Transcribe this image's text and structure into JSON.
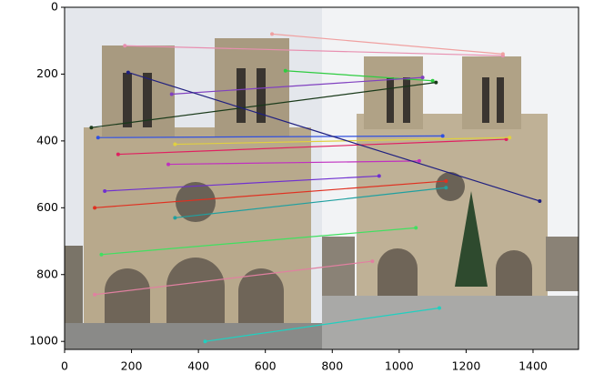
{
  "chart_data": {
    "type": "image-matches",
    "xlim": [
      0,
      1536
    ],
    "ylim": [
      1024,
      0
    ],
    "xticks": [
      0,
      200,
      400,
      600,
      800,
      1000,
      1200,
      1400
    ],
    "yticks": [
      0,
      200,
      400,
      600,
      800,
      1000
    ],
    "matches": [
      {
        "x1": 180,
        "y1": 115,
        "x2": 1310,
        "y2": 145,
        "color": "#e88fb0"
      },
      {
        "x1": 620,
        "y1": 80,
        "x2": 1310,
        "y2": 140,
        "color": "#f0a0a0"
      },
      {
        "x1": 660,
        "y1": 190,
        "x2": 1100,
        "y2": 220,
        "color": "#2ecc40"
      },
      {
        "x1": 320,
        "y1": 260,
        "x2": 1070,
        "y2": 210,
        "color": "#8040c0"
      },
      {
        "x1": 80,
        "y1": 360,
        "x2": 1110,
        "y2": 225,
        "color": "#1a3a1a"
      },
      {
        "x1": 100,
        "y1": 390,
        "x2": 1130,
        "y2": 385,
        "color": "#3050e0"
      },
      {
        "x1": 160,
        "y1": 440,
        "x2": 1320,
        "y2": 395,
        "color": "#e02060"
      },
      {
        "x1": 330,
        "y1": 410,
        "x2": 1330,
        "y2": 390,
        "color": "#e0d040"
      },
      {
        "x1": 310,
        "y1": 470,
        "x2": 1060,
        "y2": 460,
        "color": "#c030c0"
      },
      {
        "x1": 190,
        "y1": 195,
        "x2": 1420,
        "y2": 580,
        "color": "#202080"
      },
      {
        "x1": 120,
        "y1": 550,
        "x2": 940,
        "y2": 505,
        "color": "#7030d0"
      },
      {
        "x1": 90,
        "y1": 600,
        "x2": 1140,
        "y2": 520,
        "color": "#e03020"
      },
      {
        "x1": 330,
        "y1": 630,
        "x2": 1140,
        "y2": 540,
        "color": "#20a0a0"
      },
      {
        "x1": 110,
        "y1": 740,
        "x2": 1050,
        "y2": 660,
        "color": "#40e060"
      },
      {
        "x1": 90,
        "y1": 860,
        "x2": 920,
        "y2": 760,
        "color": "#e080a0"
      },
      {
        "x1": 420,
        "y1": 1000,
        "x2": 1120,
        "y2": 900,
        "color": "#20d0c0"
      }
    ]
  }
}
